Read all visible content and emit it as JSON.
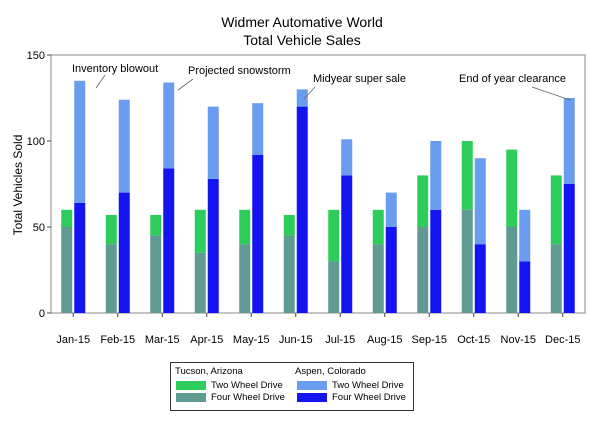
{
  "chart_data": {
    "type": "bar",
    "title": "Widmer Automative World",
    "subtitle": "Total Vehicle Sales",
    "ylabel": "Total Vehicles Sold",
    "xlabel": "",
    "ylim": [
      0,
      150
    ],
    "yticks": [
      0,
      50,
      100,
      150
    ],
    "grid": false,
    "categories": [
      "Jan-15",
      "Feb-15",
      "Mar-15",
      "Apr-15",
      "May-15",
      "Jun-15",
      "Jul-15",
      "Aug-15",
      "Sep-15",
      "Oct-15",
      "Nov-15",
      "Dec-15"
    ],
    "groups": [
      {
        "name": "Tucson, Arizona",
        "series": [
          {
            "name": "Four Wheel Drive",
            "color": "#5f9a93",
            "values": [
              50,
              40,
              45,
              35,
              40,
              45,
              30,
              40,
              50,
              60,
              50,
              40
            ]
          },
          {
            "name": "Two Wheel Drive",
            "color": "#2ecc5a",
            "values": [
              10,
              17,
              12,
              25,
              20,
              12,
              30,
              20,
              30,
              40,
              45,
              40
            ]
          }
        ]
      },
      {
        "name": "Aspen, Colorado",
        "series": [
          {
            "name": "Four Wheel Drive",
            "color": "#1414f0",
            "values": [
              64,
              70,
              84,
              78,
              92,
              120,
              80,
              50,
              60,
              40,
              30,
              75
            ]
          },
          {
            "name": "Two Wheel Drive",
            "color": "#6a9cf0",
            "values": [
              71,
              54,
              50,
              42,
              30,
              10,
              21,
              20,
              40,
              50,
              30,
              50
            ]
          }
        ]
      }
    ],
    "annotations": [
      {
        "text": "Inventory blowout",
        "category": "Jan-15"
      },
      {
        "text": "Projected snowstorm",
        "category": "Mar-15"
      },
      {
        "text": "Midyear super sale",
        "category": "Jun-15"
      },
      {
        "text": "End of year clearance",
        "category": "Dec-15"
      }
    ],
    "legend": {
      "placement": "bottom",
      "tucson_title": "Tucson, Arizona",
      "aspen_title": "Aspen, Colorado",
      "two_wheel": "Two Wheel Drive",
      "four_wheel": "Four Wheel Drive"
    }
  }
}
